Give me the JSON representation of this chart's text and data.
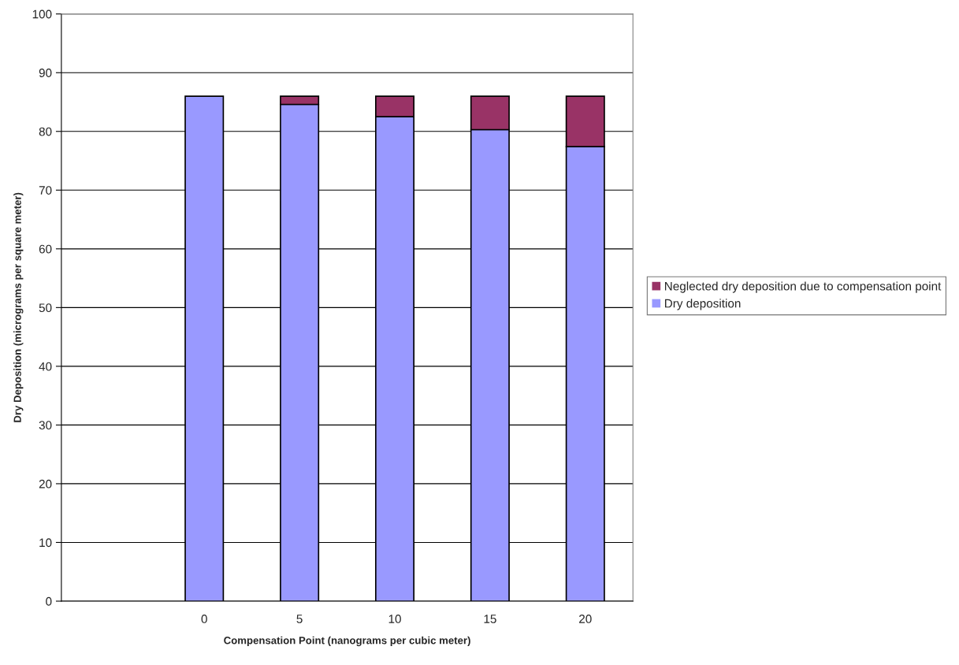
{
  "chart_data": {
    "type": "bar",
    "stacked": true,
    "xlabel": "Compensation Point (nanograms per cubic meter)",
    "ylabel": "Dry Deposition (micrograms per square meter)",
    "categories": [
      null,
      "0",
      "5",
      "10",
      "15",
      "20"
    ],
    "series": [
      {
        "name": "Dry deposition",
        "color": "#9999ff",
        "values": [
          null,
          86,
          84.6,
          82.5,
          80.3,
          77.4
        ]
      },
      {
        "name": "Neglected dry deposition due to compensation point",
        "color": "#993366",
        "values": [
          null,
          0,
          1.4,
          3.5,
          5.7,
          8.6
        ]
      }
    ],
    "ylim": [
      0,
      100
    ],
    "yticks": [
      0,
      10,
      20,
      30,
      40,
      50,
      60,
      70,
      80,
      90,
      100
    ],
    "grid": "y",
    "legend": "right"
  }
}
